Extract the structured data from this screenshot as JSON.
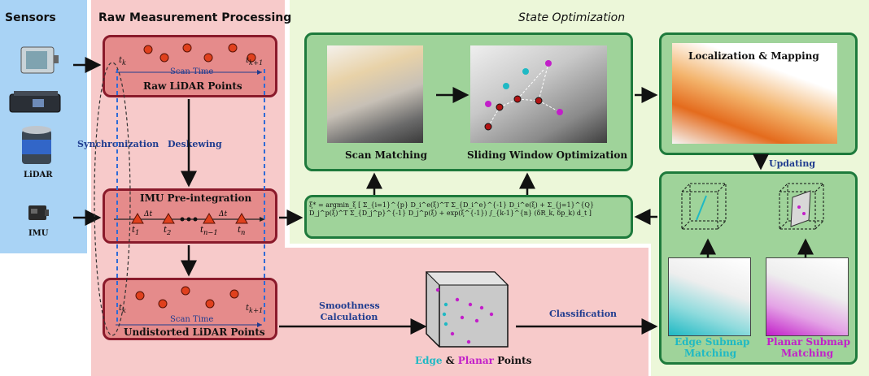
{
  "panels": {
    "sensors": "Sensors",
    "raw": "Raw Measurement Processing",
    "state": "State Optimization"
  },
  "sensors": {
    "lidar": "LiDAR",
    "imu": "IMU"
  },
  "raw_nodes": {
    "raw_lidar": "Raw LiDAR Points",
    "imu_preint": "IMU Pre-integration",
    "undistorted": "Undistorted LiDAR Points",
    "scan_time": "Scan Time",
    "tk": "t",
    "tk_sub": "k",
    "tk1_sub": "k+1",
    "dt": "Δt"
  },
  "imu_ticks": [
    {
      "t": "t",
      "s": "1"
    },
    {
      "t": "t",
      "s": "2"
    },
    {
      "t": "t",
      "s": "n−1"
    },
    {
      "t": "t",
      "s": "n"
    }
  ],
  "edge_labels": {
    "synchronization": "Synchronization",
    "deskewing": "Deskewing",
    "smoothness_1": "Smoothness",
    "smoothness_2": "Calculation",
    "classification": "Classification",
    "updating": "Updating"
  },
  "state_nodes": {
    "scan_matching": "Scan Matching",
    "sliding_window": "Sliding Window Optimization",
    "loc_mapping": "Localization & Mapping"
  },
  "equation": "ξ* = argmin_ξ [ Σ_{i=1}^{p} D_i^e(ξ)^T Σ_{D_i^e}^{-1} D_i^e(ξ) + Σ_{j=1}^{Q} D_j^p(ξ)^T Σ_{D_j^p}^{-1} D_j^p(ξ) + exp(ξ^{-1}) ∫_{k-1}^{n} (δR_k, δp_k) d_t ]",
  "points": {
    "edge": "Edge",
    "amp": " & ",
    "planar": "Planar",
    "points": " Points"
  },
  "submaps": {
    "edge_1": "Edge Submap",
    "edge_2": "Matching",
    "planar_1": "Planar Submap",
    "planar_2": "Matching"
  },
  "colors": {
    "sensors_bg": "#a9d3f5",
    "raw_bg": "#f7caca",
    "state_bg": "#ecf7d9",
    "red_node": "#e58b8b",
    "red_border": "#8a1a2b",
    "green_node": "#9fd39a",
    "green_border": "#1e7a3c",
    "edge_cyan": "#1fb9c4",
    "planar_magenta": "#c21fc9",
    "label_blue": "#1f3c8f"
  }
}
